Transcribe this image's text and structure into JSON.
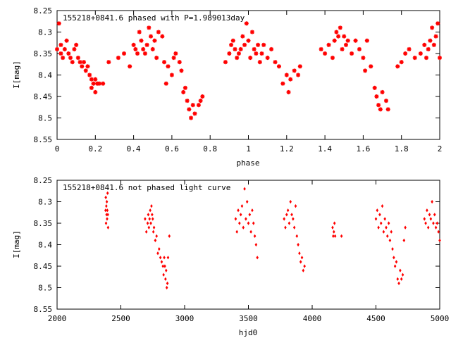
{
  "chart_data": [
    {
      "type": "scatter",
      "title": "155218+0841.6 phased with P=1.989013day",
      "xlabel": "phase",
      "ylabel": "I[mag]",
      "xlim": [
        0,
        2
      ],
      "ylim": [
        8.55,
        8.25
      ],
      "y_inverted": true,
      "xticks": [
        "0",
        "0.2",
        "0.4",
        "0.6",
        "0.8",
        "1",
        "1.2",
        "1.4",
        "1.6",
        "1.8",
        "2"
      ],
      "yticks": [
        "8.25",
        "8.3",
        "8.35",
        "8.4",
        "8.45",
        "8.5",
        "8.55"
      ],
      "grid": false,
      "color": "#ff0000",
      "marker": "asterisk",
      "series": [
        {
          "x": [
            0.0,
            0.01,
            0.02,
            0.02,
            0.03,
            0.04,
            0.05,
            0.06,
            0.07,
            0.08,
            0.09,
            0.1,
            0.11,
            0.12,
            0.13,
            0.14,
            0.15,
            0.16,
            0.17,
            0.18,
            0.18,
            0.19,
            0.2,
            0.2,
            0.21,
            0.22,
            0.24,
            0.27,
            0.32,
            0.35,
            0.38,
            0.4,
            0.41,
            0.42,
            0.43,
            0.44,
            0.45,
            0.46,
            0.47,
            0.48,
            0.49,
            0.5,
            0.51,
            0.52,
            0.53,
            0.55,
            0.56,
            0.57,
            0.58,
            0.6,
            0.61,
            0.62,
            0.64,
            0.65,
            0.66,
            0.67,
            0.68,
            0.69,
            0.7,
            0.71,
            0.72,
            0.74,
            0.75,
            0.76,
            0.88,
            0.9,
            0.91,
            0.92,
            0.93,
            0.94,
            0.95,
            0.96,
            0.97,
            0.98,
            0.99,
            1.0,
            1.01,
            1.02,
            1.03,
            1.04,
            1.05,
            1.06,
            1.07,
            1.08,
            1.1,
            1.12,
            1.14,
            1.16,
            1.18,
            1.2,
            1.21,
            1.22,
            1.24,
            1.26,
            1.27,
            1.38,
            1.4,
            1.42,
            1.44,
            1.45,
            1.46,
            1.47,
            1.48,
            1.49,
            1.5,
            1.51,
            1.52,
            1.54,
            1.56,
            1.58,
            1.6,
            1.61,
            1.62,
            1.64,
            1.66,
            1.67,
            1.68,
            1.69,
            1.7,
            1.72,
            1.73,
            1.78,
            1.8,
            1.82,
            1.84,
            1.87,
            1.9,
            1.92,
            1.93,
            1.94,
            1.95,
            1.96,
            1.97,
            1.98,
            1.99,
            2.0
          ],
          "y": [
            8.34,
            8.28,
            8.35,
            8.33,
            8.36,
            8.34,
            8.32,
            8.35,
            8.36,
            8.37,
            8.34,
            8.33,
            8.36,
            8.37,
            8.38,
            8.37,
            8.39,
            8.38,
            8.4,
            8.41,
            8.43,
            8.42,
            8.44,
            8.41,
            8.42,
            8.42,
            8.42,
            8.37,
            8.36,
            8.35,
            8.38,
            8.33,
            8.34,
            8.35,
            8.3,
            8.32,
            8.34,
            8.35,
            8.33,
            8.29,
            8.31,
            8.34,
            8.32,
            8.36,
            8.3,
            8.31,
            8.37,
            8.42,
            8.38,
            8.4,
            8.36,
            8.35,
            8.37,
            8.39,
            8.44,
            8.43,
            8.46,
            8.48,
            8.5,
            8.47,
            8.49,
            8.47,
            8.46,
            8.45,
            8.37,
            8.35,
            8.33,
            8.32,
            8.34,
            8.36,
            8.35,
            8.34,
            8.31,
            8.33,
            8.28,
            8.32,
            8.36,
            8.3,
            8.34,
            8.35,
            8.33,
            8.37,
            8.35,
            8.33,
            8.36,
            8.34,
            8.37,
            8.38,
            8.42,
            8.4,
            8.44,
            8.41,
            8.39,
            8.4,
            8.38,
            8.34,
            8.35,
            8.33,
            8.36,
            8.32,
            8.3,
            8.31,
            8.29,
            8.34,
            8.31,
            8.33,
            8.32,
            8.35,
            8.32,
            8.34,
            8.36,
            8.39,
            8.32,
            8.38,
            8.43,
            8.45,
            8.47,
            8.48,
            8.44,
            8.46,
            8.48,
            8.38,
            8.37,
            8.35,
            8.34,
            8.36,
            8.35,
            8.33,
            8.36,
            8.34,
            8.32,
            8.29,
            8.33,
            8.31,
            8.28,
            8.36
          ]
        }
      ]
    },
    {
      "type": "scatter",
      "title": "155218+0841.6 not phased light curve",
      "xlabel": "hjd0",
      "ylabel": "I[mag]",
      "xlim": [
        2000,
        5000
      ],
      "ylim": [
        8.55,
        8.25
      ],
      "y_inverted": true,
      "xticks": [
        "2000",
        "2500",
        "3000",
        "3500",
        "4000",
        "4500",
        "5000"
      ],
      "yticks": [
        "8.25",
        "8.3",
        "8.35",
        "8.4",
        "8.45",
        "8.5",
        "8.55"
      ],
      "grid": false,
      "color": "#ff0000",
      "marker": "diamond",
      "series": [
        {
          "x": [
            2380,
            2382,
            2384,
            2386,
            2388,
            2390,
            2392,
            2394,
            2396,
            2398,
            2400,
            2690,
            2700,
            2710,
            2715,
            2720,
            2725,
            2730,
            2735,
            2740,
            2745,
            2750,
            2755,
            2760,
            2770,
            2780,
            2790,
            2800,
            2810,
            2820,
            2830,
            2835,
            2840,
            2845,
            2850,
            2855,
            2860,
            2865,
            2870,
            2880,
            3400,
            3410,
            3420,
            3430,
            3440,
            3450,
            3460,
            3470,
            3480,
            3490,
            3500,
            3510,
            3520,
            3530,
            3540,
            3550,
            3560,
            3570,
            3780,
            3790,
            3800,
            3810,
            3820,
            3830,
            3840,
            3850,
            3860,
            3870,
            3880,
            3890,
            3900,
            3910,
            3920,
            3930,
            3940,
            4160,
            4165,
            4170,
            4175,
            4180,
            4230,
            4500,
            4510,
            4520,
            4530,
            4540,
            4550,
            4560,
            4570,
            4580,
            4590,
            4600,
            4610,
            4620,
            4630,
            4640,
            4650,
            4660,
            4670,
            4680,
            4690,
            4700,
            4710,
            4720,
            4730,
            4880,
            4890,
            4900,
            4910,
            4920,
            4930,
            4940,
            4950,
            4960,
            4970,
            4980,
            4990,
            5000
          ],
          "y": [
            8.32,
            8.29,
            8.35,
            8.31,
            8.33,
            8.3,
            8.34,
            8.32,
            8.28,
            8.33,
            8.36,
            8.34,
            8.37,
            8.35,
            8.33,
            8.36,
            8.34,
            8.32,
            8.35,
            8.31,
            8.33,
            8.34,
            8.37,
            8.36,
            8.39,
            8.38,
            8.42,
            8.41,
            8.43,
            8.44,
            8.45,
            8.47,
            8.43,
            8.45,
            8.48,
            8.46,
            8.5,
            8.49,
            8.43,
            8.38,
            8.34,
            8.37,
            8.32,
            8.35,
            8.33,
            8.31,
            8.36,
            8.27,
            8.34,
            8.3,
            8.35,
            8.33,
            8.37,
            8.32,
            8.35,
            8.38,
            8.4,
            8.43,
            8.34,
            8.36,
            8.33,
            8.32,
            8.35,
            8.3,
            8.33,
            8.34,
            8.36,
            8.31,
            8.38,
            8.4,
            8.42,
            8.44,
            8.43,
            8.46,
            8.45,
            8.36,
            8.38,
            8.37,
            8.35,
            8.38,
            8.38,
            8.34,
            8.32,
            8.36,
            8.33,
            8.35,
            8.31,
            8.37,
            8.34,
            8.36,
            8.38,
            8.35,
            8.39,
            8.37,
            8.41,
            8.43,
            8.45,
            8.44,
            8.48,
            8.49,
            8.46,
            8.48,
            8.47,
            8.39,
            8.36,
            8.34,
            8.35,
            8.32,
            8.36,
            8.33,
            8.34,
            8.3,
            8.35,
            8.33,
            8.36,
            8.35,
            8.37,
            8.39
          ]
        }
      ]
    }
  ]
}
